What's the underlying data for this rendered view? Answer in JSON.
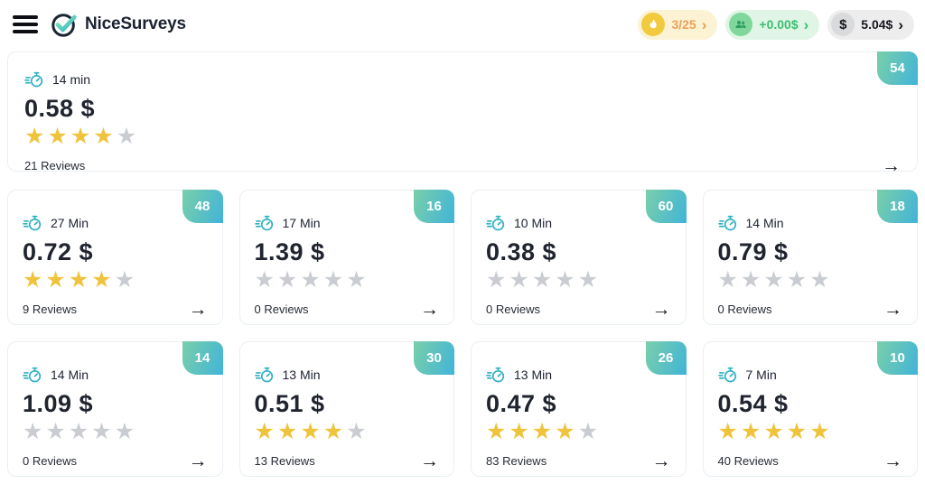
{
  "header": {
    "logo_text": "NiceSurveys",
    "pills": {
      "streak": {
        "icon": "flame-icon",
        "label": "3/25",
        "chevron": "›"
      },
      "earnings": {
        "icon": "people-icon",
        "label": "+0.00$",
        "chevron": "›"
      },
      "balance": {
        "icon": "dollar-icon",
        "symbol": "$",
        "label": "5.04$",
        "chevron": "›"
      }
    }
  },
  "featured_card": {
    "time": "14 min",
    "price": "0.58 $",
    "rating": 4,
    "reviews": "21 Reviews",
    "badge": "54"
  },
  "cards": [
    {
      "time": "27 Min",
      "price": "0.72 $",
      "rating": 4,
      "reviews": "9 Reviews",
      "badge": "48"
    },
    {
      "time": "17 Min",
      "price": "1.39 $",
      "rating": 0,
      "reviews": "0 Reviews",
      "badge": "16"
    },
    {
      "time": "10 Min",
      "price": "0.38 $",
      "rating": 0,
      "reviews": "0 Reviews",
      "badge": "60"
    },
    {
      "time": "14 Min",
      "price": "0.79 $",
      "rating": 0,
      "reviews": "0 Reviews",
      "badge": "18"
    },
    {
      "time": "14 Min",
      "price": "1.09 $",
      "rating": 0,
      "reviews": "0 Reviews",
      "badge": "14"
    },
    {
      "time": "13 Min",
      "price": "0.51 $",
      "rating": 4,
      "reviews": "13 Reviews",
      "badge": "30"
    },
    {
      "time": "13 Min",
      "price": "0.47 $",
      "rating": 4,
      "reviews": "83 Reviews",
      "badge": "26"
    },
    {
      "time": "7 Min",
      "price": "0.54 $",
      "rating": 5,
      "reviews": "40 Reviews",
      "badge": "10"
    }
  ],
  "ui": {
    "max_stars": 5,
    "star_glyph": "★",
    "arrow_glyph": "→"
  },
  "colors": {
    "badge_gradient_start": "#79cfa9",
    "badge_gradient_end": "#41b4d8",
    "star_gold": "#f0c33c",
    "star_gray": "#c9ccd1",
    "stopwatch_teal": "#2eb1c3",
    "streak_orange": "#efa058",
    "earnings_green": "#3cbd72"
  }
}
